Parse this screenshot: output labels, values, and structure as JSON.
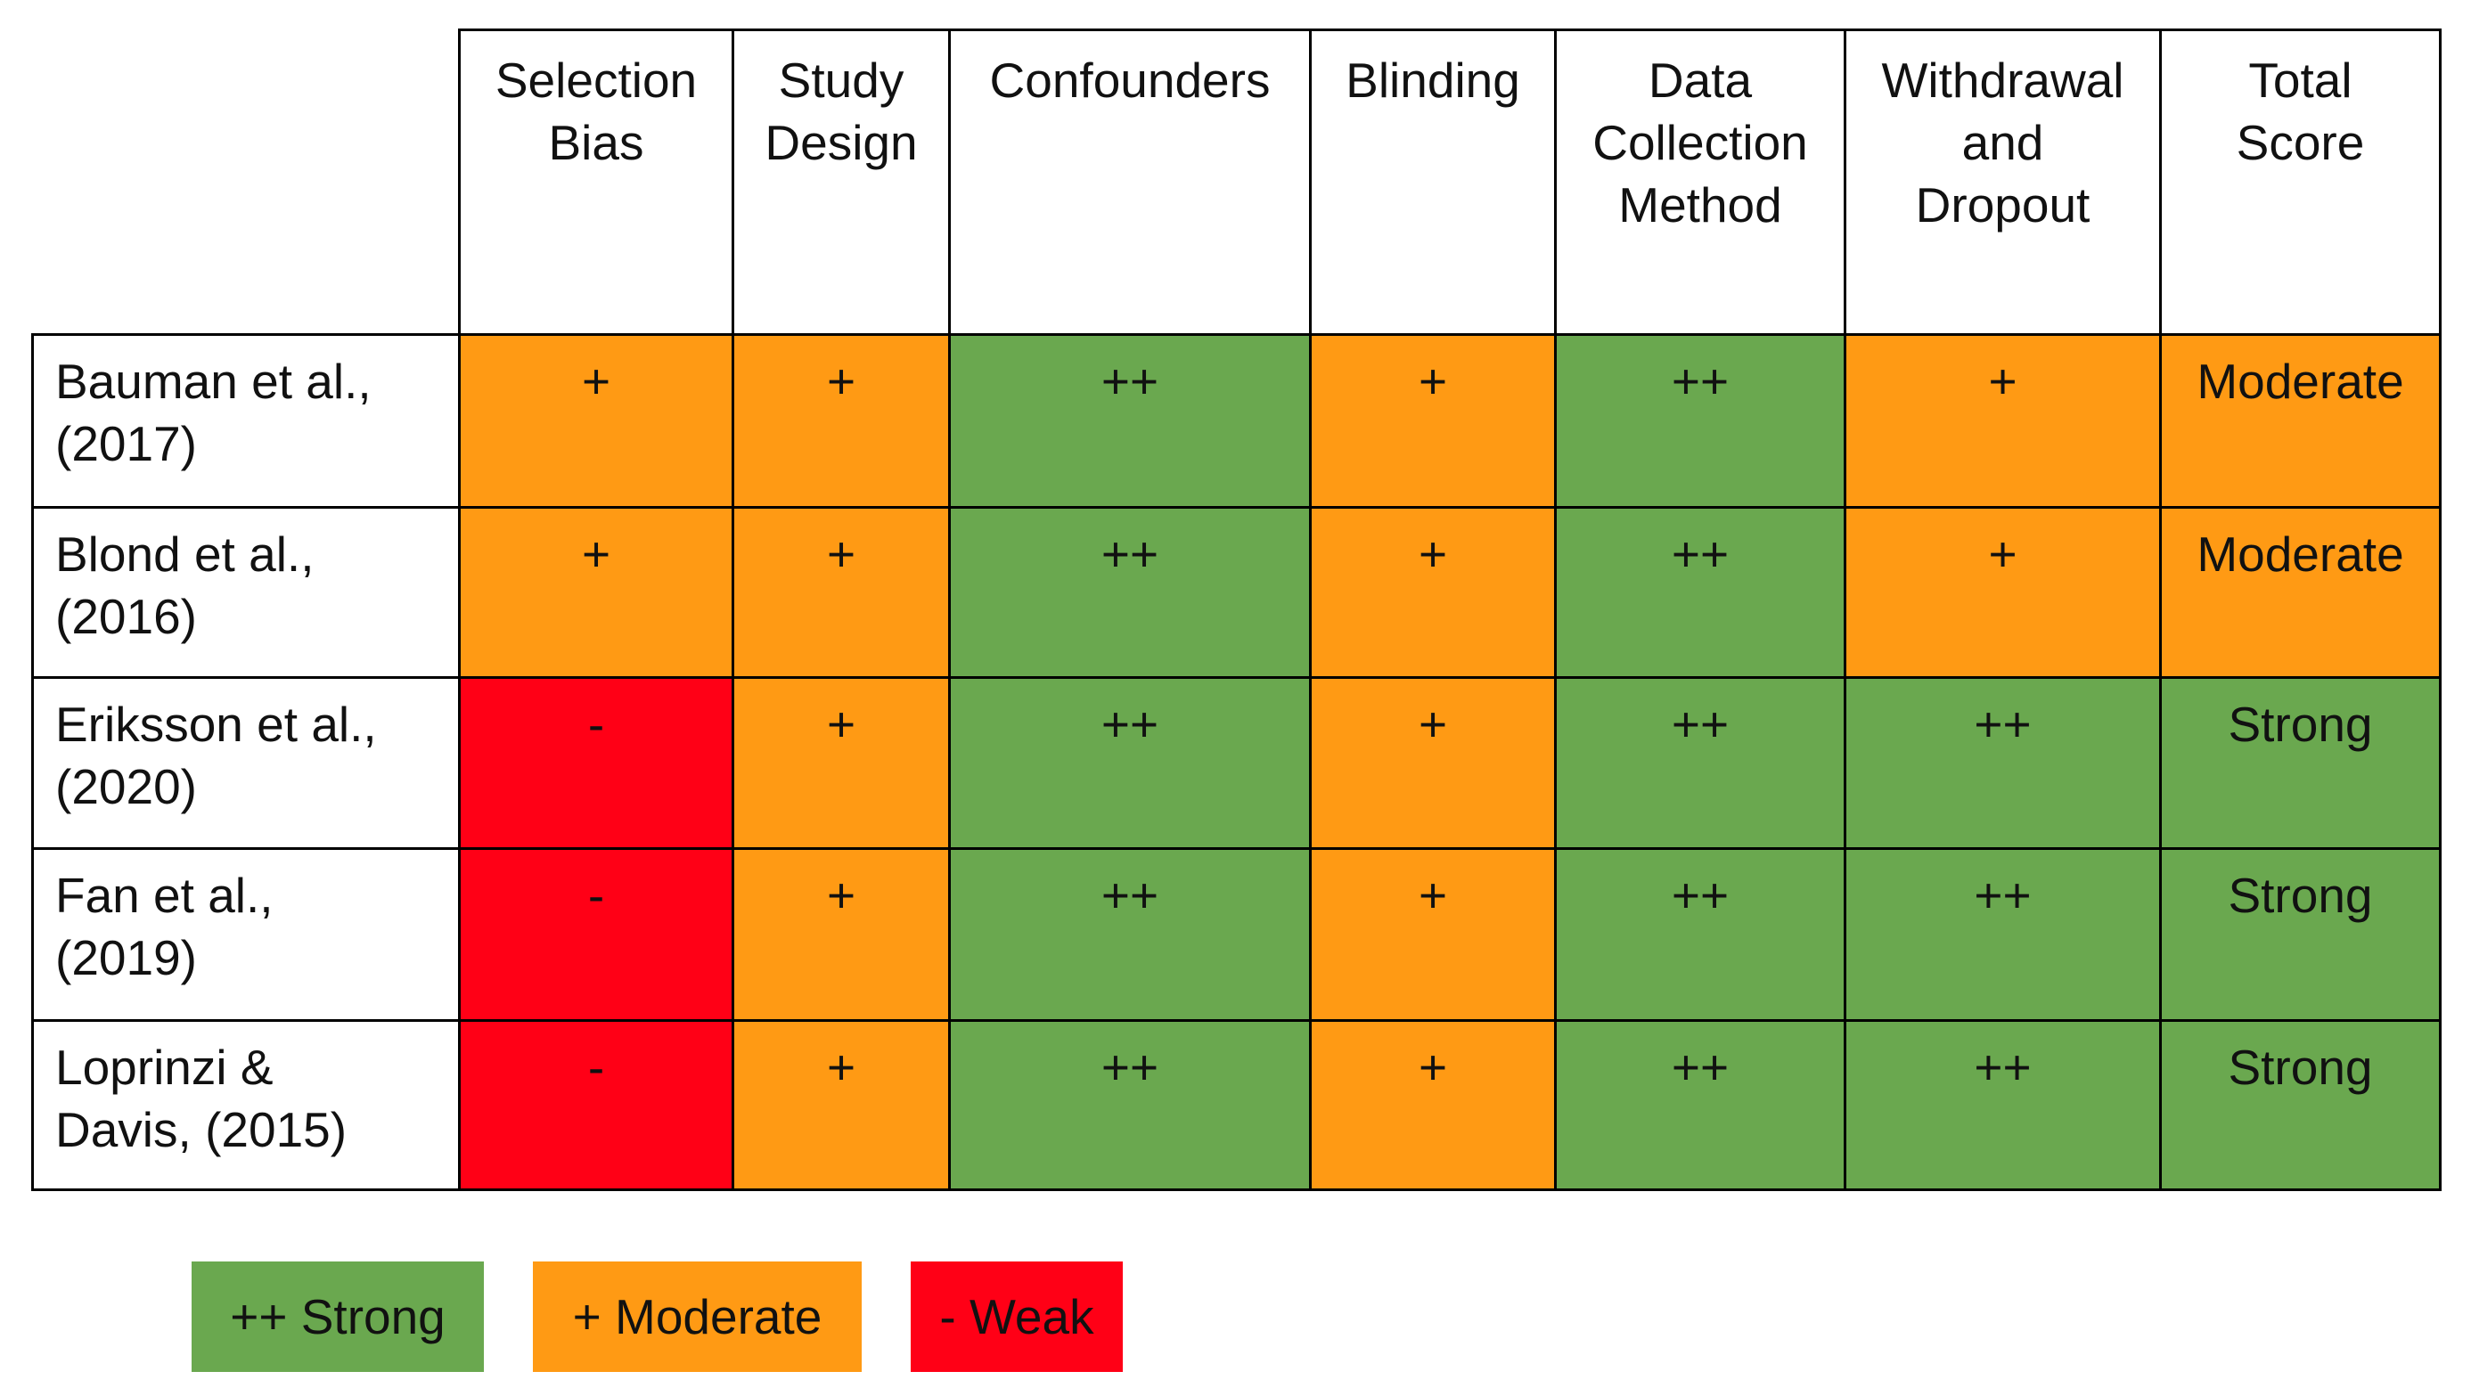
{
  "table": {
    "columns": [
      [
        "Selection",
        "Bias"
      ],
      [
        "Study",
        "Design"
      ],
      [
        "Confounders"
      ],
      [
        "Blinding"
      ],
      [
        "Data",
        "Collection",
        "Method"
      ],
      [
        "Withdrawal",
        "and",
        "Dropout"
      ],
      [
        "Total",
        "Score"
      ]
    ],
    "rows": [
      {
        "study": [
          "Bauman et al.,",
          "(2017)"
        ],
        "cells": [
          "+",
          "+",
          "++",
          "+",
          "++",
          "+",
          "Moderate"
        ]
      },
      {
        "study": [
          "Blond et al.,",
          "(2016)"
        ],
        "cells": [
          "+",
          "+",
          "++",
          "+",
          "++",
          "+",
          "Moderate"
        ]
      },
      {
        "study": [
          "Eriksson et al.,",
          "(2020)"
        ],
        "cells": [
          "-",
          "+",
          "++",
          "+",
          "++",
          "++",
          "Strong"
        ]
      },
      {
        "study": [
          "Fan et al.,",
          "(2019)"
        ],
        "cells": [
          "-",
          "+",
          "++",
          "+",
          "++",
          "++",
          "Strong"
        ]
      },
      {
        "study": [
          "Loprinzi &",
          "Davis, (2015)"
        ],
        "cells": [
          "-",
          "+",
          "++",
          "+",
          "++",
          "++",
          "Strong"
        ]
      }
    ]
  },
  "legend": [
    {
      "label": "++ Strong",
      "color": "#6aa84f"
    },
    {
      "label": "+ Moderate",
      "color": "#ff9a14"
    },
    {
      "label": "- Weak",
      "color": "#ff0016"
    }
  ]
}
